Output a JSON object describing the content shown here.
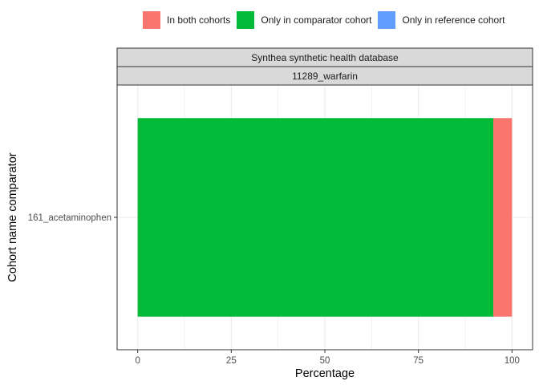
{
  "chart_data": {
    "type": "bar",
    "orientation": "horizontal",
    "stacked": true,
    "facet_strips": [
      "Synthea synthetic health database",
      "11289_warfarin"
    ],
    "categories": [
      "161_acetaminophen"
    ],
    "series": [
      {
        "name": "Only in comparator cohort",
        "color": "#00BA38",
        "values": [
          95
        ]
      },
      {
        "name": "In both cohorts",
        "color": "#F8766D",
        "values": [
          5
        ]
      },
      {
        "name": "Only in reference cohort",
        "color": "#619CFF",
        "values": [
          0
        ]
      }
    ],
    "legend_order": [
      "In both cohorts",
      "Only in comparator cohort",
      "Only in reference cohort"
    ],
    "legend_colors": [
      "#F8766D",
      "#00BA38",
      "#619CFF"
    ],
    "legend_position": "top",
    "xlabel": "Percentage",
    "ylabel": "Cohort name comparator",
    "xlim": [
      -5.5,
      105.5
    ],
    "xticks": [
      0,
      25,
      50,
      75,
      100
    ],
    "grid": true
  }
}
